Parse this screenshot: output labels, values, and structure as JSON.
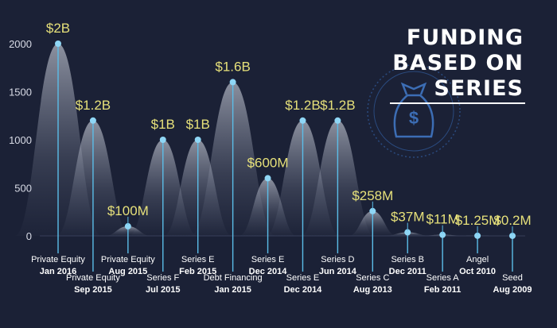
{
  "title_lines": [
    "FUNDING",
    "BASED ON",
    "SERIES"
  ],
  "colors": {
    "background": "#1b2136",
    "value_label": "#e6e07a",
    "stem": "#5bbde8",
    "point": "#8fd6f5",
    "text": "#ffffff",
    "axis_text": "#d8dbe6",
    "emblem": "#2c4f86"
  },
  "icon": "money-bag-icon",
  "chart_data": {
    "type": "scatter",
    "title": "FUNDING BASED ON SERIES",
    "xlabel": "",
    "ylabel": "",
    "ylim": [
      0,
      2000
    ],
    "yticks": [
      0,
      500,
      1000,
      1500,
      2000
    ],
    "grid": false,
    "points": [
      {
        "round": "Private Equity",
        "date": "Jan 2016",
        "label": "$2B",
        "value": 2000
      },
      {
        "round": "Private Equity",
        "date": "Sep 2015",
        "label": "$1.2B",
        "value": 1200
      },
      {
        "round": "Private Equity",
        "date": "Aug 2015",
        "label": "$100M",
        "value": 100
      },
      {
        "round": "Series F",
        "date": "Jul 2015",
        "label": "$1B",
        "value": 1000
      },
      {
        "round": "Series E",
        "date": "Feb 2015",
        "label": "$1B",
        "value": 1000
      },
      {
        "round": "Debt Financing",
        "date": "Jan 2015",
        "label": "$1.6B",
        "value": 1600
      },
      {
        "round": "Series E",
        "date": "Dec 2014",
        "label": "$600M",
        "value": 600
      },
      {
        "round": "Series E",
        "date": "Dec 2014",
        "label": "$1.2B",
        "value": 1200
      },
      {
        "round": "Series D",
        "date": "Jun 2014",
        "label": "$1.2B",
        "value": 1200
      },
      {
        "round": "Series C",
        "date": "Aug 2013",
        "label": "$258M",
        "value": 258
      },
      {
        "round": "Series B",
        "date": "Dec 2011",
        "label": "$37M",
        "value": 37
      },
      {
        "round": "Series A",
        "date": "Feb 2011",
        "label": "$11M",
        "value": 11
      },
      {
        "round": "Angel",
        "date": "Oct 2010",
        "label": "$1.25M",
        "value": 1.25
      },
      {
        "round": "Seed",
        "date": "Aug 2009",
        "label": "$0.2M",
        "value": 0.2
      }
    ]
  }
}
